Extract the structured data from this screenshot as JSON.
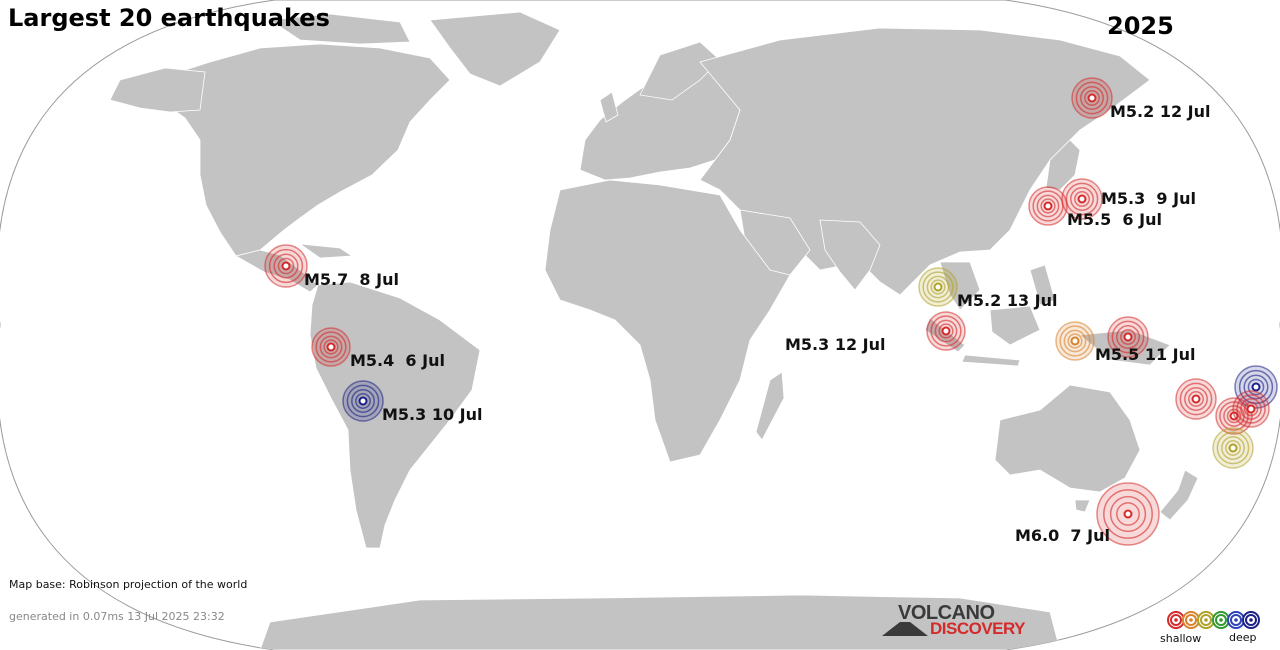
{
  "title": "Largest 20 earthquakes",
  "year": "2025",
  "map_base": "Map base: Robinson projection of the world",
  "generated": "generated in 0.07ms 13 Jul 2025 23:32",
  "logo": {
    "line1": "VOLCANO",
    "line2": "DISCOVERY"
  },
  "legend": {
    "left": "shallow",
    "right": "deep",
    "colors": [
      "#d42a2a",
      "#d8822c",
      "#b0a228",
      "#2f9a2f",
      "#2f43b8",
      "#1b1f86"
    ]
  },
  "colors": {
    "land": "#c3c3c3",
    "ocean": "#ffffff",
    "border": "#ffffff"
  },
  "labels": [
    {
      "id": "kamchatka",
      "text": "M5.2 12 Jul"
    },
    {
      "id": "japan-a",
      "text": "M5.3  9 Jul"
    },
    {
      "id": "japan-b",
      "text": "M5.5  6 Jul"
    },
    {
      "id": "mexico",
      "text": "M5.7  8 Jul"
    },
    {
      "id": "myanmar",
      "text": "M5.2 13 Jul"
    },
    {
      "id": "peru",
      "text": "M5.4  6 Jul"
    },
    {
      "id": "bolivia",
      "text": "M5.3 10 Jul"
    },
    {
      "id": "indian-ocean",
      "text": "M5.3 12 Jul"
    },
    {
      "id": "indonesia",
      "text": "M5.5 11 Jul"
    },
    {
      "id": "newzealand",
      "text": "M6.0  7 Jul"
    }
  ]
}
